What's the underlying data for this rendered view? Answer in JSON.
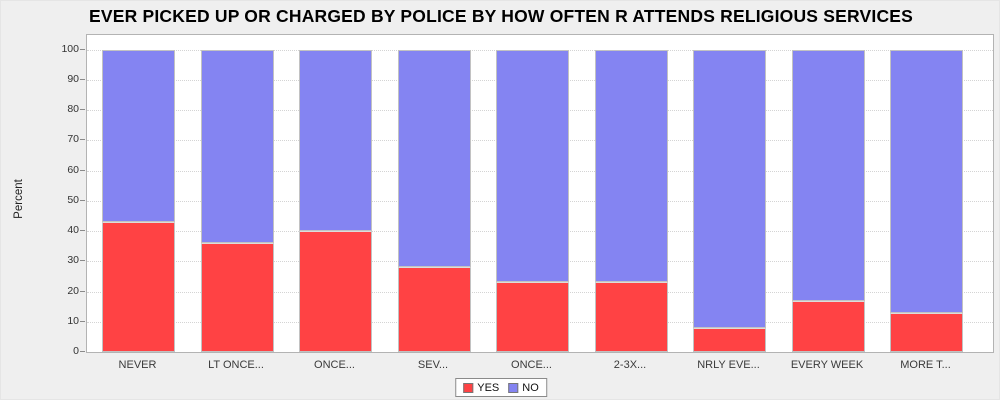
{
  "title": "EVER PICKED UP OR CHARGED BY POLICE BY HOW OFTEN R ATTENDS RELIGIOUS SERVICES",
  "chart_data": {
    "type": "bar",
    "stacked": true,
    "orientation": "vertical",
    "title": "EVER PICKED UP OR CHARGED BY POLICE BY HOW OFTEN R ATTENDS RELIGIOUS SERVICES",
    "xlabel": "",
    "ylabel": "Percent",
    "ylim": [
      0,
      100
    ],
    "yticks": [
      0,
      10,
      20,
      30,
      40,
      50,
      60,
      70,
      80,
      90,
      100
    ],
    "grid": true,
    "legend_position": "bottom-center",
    "categories": [
      "NEVER",
      "LT ONCE...",
      "ONCE...",
      "SEV...",
      "ONCE...",
      "2-3X...",
      "NRLY EVE...",
      "EVERY WEEK",
      "MORE T..."
    ],
    "series": [
      {
        "name": "YES",
        "color": "#ff4244",
        "values": [
          43,
          36,
          40,
          28,
          23,
          23,
          8,
          17,
          13
        ]
      },
      {
        "name": "NO",
        "color": "#8484f2",
        "values": [
          57,
          64,
          60,
          72,
          77,
          77,
          92,
          83,
          87
        ]
      }
    ]
  },
  "colors": {
    "background": "#efefef",
    "plot_background": "#ffffff",
    "plot_border": "#b3b3b3",
    "gridline": "#d4d4d4",
    "yes": "#ff4244",
    "no": "#8484f2",
    "title_text": "#000000",
    "tick_text": "#333333"
  }
}
